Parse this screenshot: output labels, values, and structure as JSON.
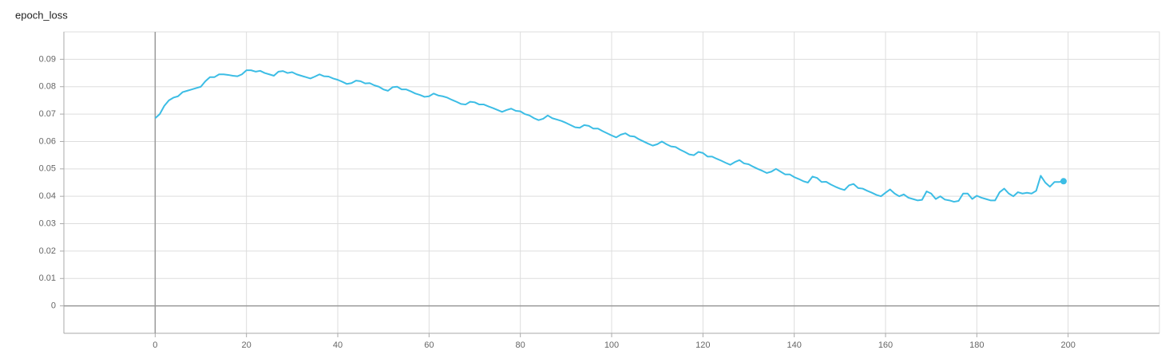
{
  "chart_data": {
    "type": "line",
    "title": "epoch_loss",
    "x": [
      0,
      1,
      2,
      3,
      4,
      5,
      6,
      7,
      8,
      9,
      10,
      11,
      12,
      13,
      14,
      15,
      16,
      17,
      18,
      19,
      20,
      21,
      22,
      23,
      24,
      25,
      26,
      27,
      28,
      29,
      30,
      31,
      32,
      33,
      34,
      35,
      36,
      37,
      38,
      39,
      40,
      41,
      42,
      43,
      44,
      45,
      46,
      47,
      48,
      49,
      50,
      51,
      52,
      53,
      54,
      55,
      56,
      57,
      58,
      59,
      60,
      61,
      62,
      63,
      64,
      65,
      66,
      67,
      68,
      69,
      70,
      71,
      72,
      73,
      74,
      75,
      76,
      77,
      78,
      79,
      80,
      81,
      82,
      83,
      84,
      85,
      86,
      87,
      88,
      89,
      90,
      91,
      92,
      93,
      94,
      95,
      96,
      97,
      98,
      99,
      100,
      101,
      102,
      103,
      104,
      105,
      106,
      107,
      108,
      109,
      110,
      111,
      112,
      113,
      114,
      115,
      116,
      117,
      118,
      119,
      120,
      121,
      122,
      123,
      124,
      125,
      126,
      127,
      128,
      129,
      130,
      131,
      132,
      133,
      134,
      135,
      136,
      137,
      138,
      139,
      140,
      141,
      142,
      143,
      144,
      145,
      146,
      147,
      148,
      149,
      150,
      151,
      152,
      153,
      154,
      155,
      156,
      157,
      158,
      159,
      160,
      161,
      162,
      163,
      164,
      165,
      166,
      167,
      168,
      169,
      170,
      171,
      172,
      173,
      174,
      175,
      176,
      177,
      178,
      179,
      180,
      181,
      182,
      183,
      184,
      185,
      186,
      187,
      188,
      189,
      190,
      191,
      192,
      193,
      194,
      195,
      196,
      197,
      198,
      199
    ],
    "series": [
      {
        "color": "#3cbde5",
        "values": [
          0.0685,
          0.07,
          0.073,
          0.075,
          0.076,
          0.0765,
          0.078,
          0.0785,
          0.079,
          0.0795,
          0.08,
          0.082,
          0.0835,
          0.0835,
          0.0845,
          0.0845,
          0.0843,
          0.084,
          0.0838,
          0.0845,
          0.086,
          0.086,
          0.0855,
          0.0858,
          0.085,
          0.0845,
          0.084,
          0.0855,
          0.0857,
          0.085,
          0.0853,
          0.0845,
          0.084,
          0.0835,
          0.083,
          0.0837,
          0.0845,
          0.0838,
          0.0837,
          0.083,
          0.0825,
          0.0818,
          0.081,
          0.0813,
          0.0822,
          0.082,
          0.0812,
          0.0813,
          0.0805,
          0.08,
          0.079,
          0.0785,
          0.0798,
          0.08,
          0.079,
          0.079,
          0.0783,
          0.0775,
          0.077,
          0.0763,
          0.0765,
          0.0775,
          0.0768,
          0.0765,
          0.076,
          0.0752,
          0.0745,
          0.0737,
          0.0735,
          0.0745,
          0.0743,
          0.0735,
          0.0735,
          0.0728,
          0.0722,
          0.0715,
          0.0708,
          0.0715,
          0.072,
          0.0712,
          0.071,
          0.07,
          0.0695,
          0.0685,
          0.0678,
          0.0683,
          0.0695,
          0.0685,
          0.068,
          0.0675,
          0.0668,
          0.066,
          0.0652,
          0.065,
          0.066,
          0.0657,
          0.0647,
          0.0647,
          0.0638,
          0.063,
          0.0622,
          0.0615,
          0.0625,
          0.063,
          0.062,
          0.0618,
          0.0608,
          0.06,
          0.0592,
          0.0585,
          0.059,
          0.06,
          0.059,
          0.0582,
          0.058,
          0.057,
          0.0562,
          0.0553,
          0.055,
          0.0562,
          0.0558,
          0.0545,
          0.0545,
          0.0537,
          0.053,
          0.0522,
          0.0515,
          0.0525,
          0.0532,
          0.052,
          0.0517,
          0.0508,
          0.05,
          0.0493,
          0.0485,
          0.049,
          0.05,
          0.049,
          0.048,
          0.048,
          0.047,
          0.0463,
          0.0455,
          0.045,
          0.0472,
          0.0467,
          0.0452,
          0.0453,
          0.0443,
          0.0435,
          0.0428,
          0.0423,
          0.044,
          0.0445,
          0.043,
          0.0428,
          0.042,
          0.0413,
          0.0405,
          0.04,
          0.0413,
          0.0425,
          0.041,
          0.04,
          0.0407,
          0.0395,
          0.039,
          0.0385,
          0.0387,
          0.0418,
          0.041,
          0.039,
          0.04,
          0.0388,
          0.0385,
          0.038,
          0.0383,
          0.041,
          0.041,
          0.039,
          0.0402,
          0.0395,
          0.039,
          0.0385,
          0.0385,
          0.0415,
          0.0428,
          0.041,
          0.04,
          0.0415,
          0.041,
          0.0413,
          0.041,
          0.042,
          0.0475,
          0.045,
          0.0435,
          0.0452,
          0.0452,
          0.0455
        ]
      }
    ],
    "xlim": [
      -20,
      220
    ],
    "xticks": [
      0,
      20,
      40,
      60,
      80,
      100,
      120,
      140,
      160,
      180,
      200
    ],
    "ylim": [
      -0.01,
      0.1
    ],
    "yticks": [
      0,
      0.01,
      0.02,
      0.03,
      0.04,
      0.05,
      0.06,
      0.07,
      0.08,
      0.09
    ],
    "grid": true
  }
}
